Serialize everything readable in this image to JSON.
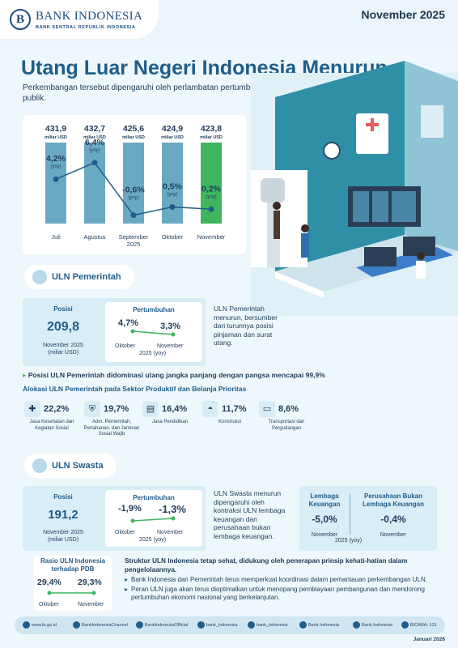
{
  "header": {
    "logo_mark": "B",
    "org_name": "BANK INDONESIA",
    "org_sub": "BANK SENTRAL REPUBLIK INDONESIA",
    "period": "November 2025"
  },
  "title": "Utang Luar Negeri Indonesia Menurun",
  "subtitle": "Perkembangan tersebut dipengaruhi oleh perlambatan pertumbuhan ULN sektor publik.",
  "chart_data": {
    "type": "bar",
    "categories": [
      "Juli",
      "Agustus",
      "September 2025",
      "Oktober",
      "November"
    ],
    "series": [
      {
        "values": [
          431.9,
          432.7,
          425.6,
          424.9,
          423.8
        ]
      },
      {
        "values": [
          4.2,
          6.4,
          -0.6,
          0.5,
          0.2
        ]
      }
    ],
    "value_labels": [
      "431,9",
      "432,7",
      "425,6",
      "424,9",
      "423,8"
    ],
    "value_unit": "miliar USD",
    "growth_labels": [
      "4,2%",
      "6,4%",
      "-0,6%",
      "0,5%",
      "0,2%"
    ],
    "growth_unit": "(yoy)",
    "colors": {
      "bar": "#6aa9c4",
      "highlight": "#3fb55f",
      "line": "#1f5d8a"
    }
  },
  "pemerintah": {
    "pill": "ULN Pemerintah",
    "posisi_label": "Posisi",
    "posisi_value": "209,8",
    "posisi_date": "November 2025",
    "posisi_unit": "(miliar USD)",
    "pertumbuhan_label": "Pertumbuhan",
    "growth_prev": "4,7%",
    "growth_now": "3,3%",
    "prev_label": "Oktober",
    "now_label": "November",
    "year_label": "2025 (yoy)",
    "desc": "ULN Pemerintah menurun, bersumber dari turunnya posisi pinjaman dan surat utang.",
    "highlight": "Posisi ULN Pemerintah didominasi utang jangka panjang dengan pangsa mencapai 99,9%",
    "alloc_title": "Alokasi ULN Pemerintah pada Sektor Produktif dan Belanja Prioritas",
    "alloc": [
      {
        "value": "22,2%",
        "label": "Jasa Kesehatan dan Kegiatan Sosial",
        "icon": "syringe-icon",
        "glyph": "✚"
      },
      {
        "value": "19,7%",
        "label": "Adm. Pemerintah, Pertahanan, dan Jaminan Sosial Wajib",
        "icon": "shield-icon",
        "glyph": "⛨"
      },
      {
        "value": "16,4%",
        "label": "Jasa Pendidikan",
        "icon": "book-icon",
        "glyph": "▤"
      },
      {
        "value": "11,7%",
        "label": "Konstruksi",
        "icon": "helmet-icon",
        "glyph": "◓"
      },
      {
        "value": "8,6%",
        "label": "Transportasi dan Pergudangan",
        "icon": "truck-icon",
        "glyph": "▭"
      }
    ]
  },
  "swasta": {
    "pill": "ULN Swasta",
    "posisi_label": "Posisi",
    "posisi_value": "191,2",
    "posisi_date": "November 2025",
    "posisi_unit": "(miliar USD)",
    "pertumbuhan_label": "Pertumbuhan",
    "growth_prev": "-1,9%",
    "growth_now": "-1,3%",
    "prev_label": "Oktober",
    "now_label": "November",
    "year_label": "2025 (yoy)",
    "desc": "ULN Swasta menurun dipengaruhi oleh kontraksi ULN lembaga keuangan dan perusahaan bukan lembaga keuangan.",
    "lk_label": "Lembaga Keuangan",
    "lk_value": "-5,0%",
    "pblk_label": "Perusahaan Bukan Lembaga Keuangan",
    "pblk_value": "-0,4%",
    "seg_month": "November",
    "seg_year": "2025 (yoy)"
  },
  "rasio": {
    "title": "Rasio ULN Indonesia terhadap PDB",
    "prev": "29,4%",
    "now": "29,3%",
    "prev_label": "Oktober",
    "now_label": "November"
  },
  "struktur": {
    "title": "Struktur ULN Indonesia tetap sehat, didukung oleh penerapan prinsip kehati-hatian dalam pengelolaannya.",
    "bullets": [
      "Bank Indonesia dan Pemerintah terus memperkuat koordinasi dalam pemantauan perkembangan ULN.",
      "Peran ULN juga akan terus dioptimalkan untuk menopang pembiayaan pembangunan dan mendorong pertumbuhan ekonomi nasional yang berkelanjutan."
    ]
  },
  "footer": {
    "links": [
      "www.bi.go.id",
      "BankIndonesiaChannel",
      "BankIndonesiaOfficial",
      "bank_indonesia",
      "bank_indonesia",
      "Bank Indonesia",
      "Bank Indonesia",
      "BICARA: 131"
    ],
    "date": "Januari 2026"
  }
}
